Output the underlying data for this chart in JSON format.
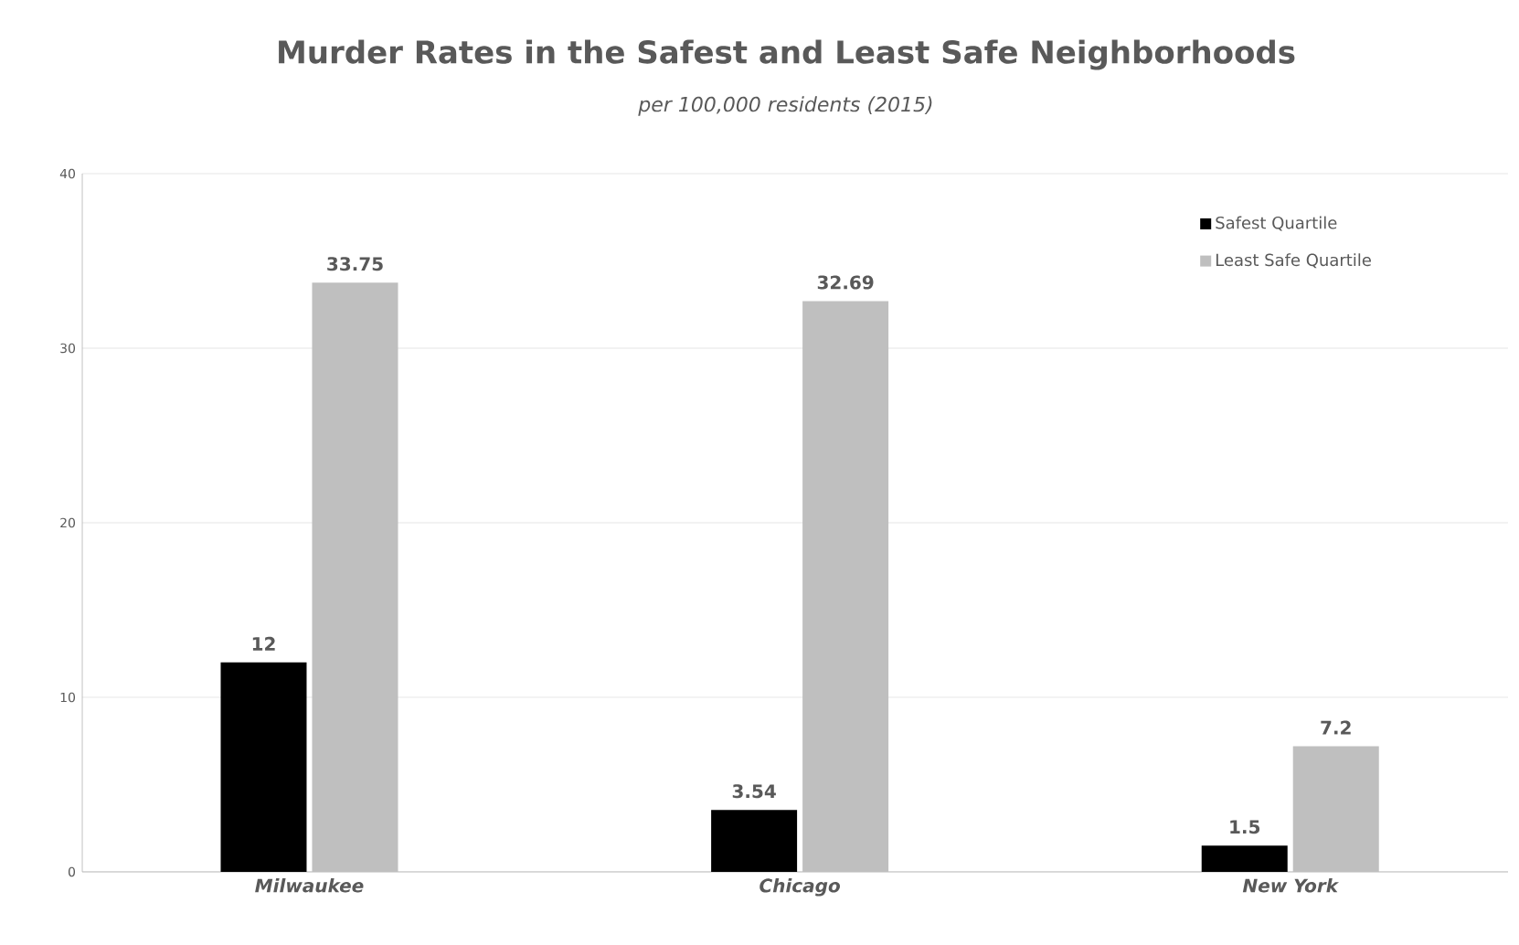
{
  "chart_data": {
    "type": "bar",
    "title": "Murder Rates in the Safest and Least Safe Neighborhoods",
    "subtitle": "per 100,000 residents (2015)",
    "categories": [
      "Milwaukee",
      "Chicago",
      "New York"
    ],
    "series": [
      {
        "name": "Safest Quartile",
        "color": "#000000",
        "values": [
          12,
          3.54,
          1.5
        ],
        "value_labels": [
          "12",
          "3.54",
          "1.5"
        ]
      },
      {
        "name": "Least Safe Quartile",
        "color": "#bfbfbf",
        "values": [
          33.75,
          32.69,
          7.2
        ],
        "value_labels": [
          "33.75",
          "32.69",
          "7.2"
        ]
      }
    ],
    "ylim": [
      0,
      40
    ],
    "yticks": [
      0,
      10,
      20,
      30,
      40
    ],
    "grid": "y",
    "legend": "top right"
  }
}
